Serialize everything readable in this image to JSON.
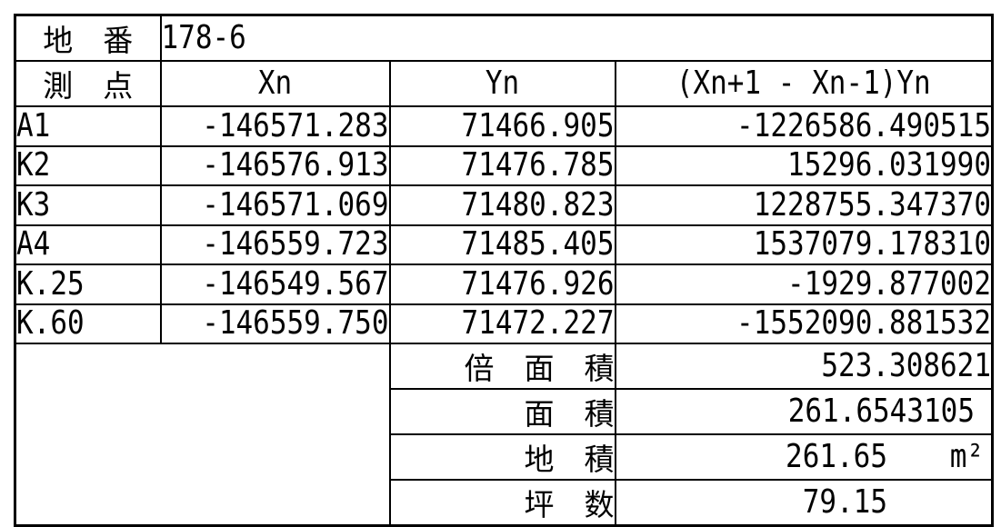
{
  "table": {
    "lot": {
      "label": "地　番",
      "value": "178-6"
    },
    "header": {
      "point": "測　点",
      "xn": "Xn",
      "yn": "Yn",
      "product": "(Xn+1 - Xn-1)Yn"
    },
    "rows": [
      {
        "point": "A1",
        "xn": "-146571.283",
        "yn": "71466.905",
        "product": "-1226586.490515"
      },
      {
        "point": "K2",
        "xn": "-146576.913",
        "yn": "71476.785",
        "product": "15296.031990"
      },
      {
        "point": "K3",
        "xn": "-146571.069",
        "yn": "71480.823",
        "product": "1228755.347370"
      },
      {
        "point": "A4",
        "xn": "-146559.723",
        "yn": "71485.405",
        "product": "1537079.178310"
      },
      {
        "point": "K.25",
        "xn": "-146549.567",
        "yn": "71476.926",
        "product": "-1929.877002"
      },
      {
        "point": "K.60",
        "xn": "-146559.750",
        "yn": "71472.227",
        "product": "-1552090.881532"
      }
    ],
    "summary": [
      {
        "label": "倍　面　積",
        "value": "523.308621"
      },
      {
        "label": "面　積",
        "value": "261.6543105"
      },
      {
        "label": "地　積",
        "value": "261.65",
        "unit": "m²"
      },
      {
        "label": "坪　数",
        "value": "79.15"
      }
    ]
  }
}
